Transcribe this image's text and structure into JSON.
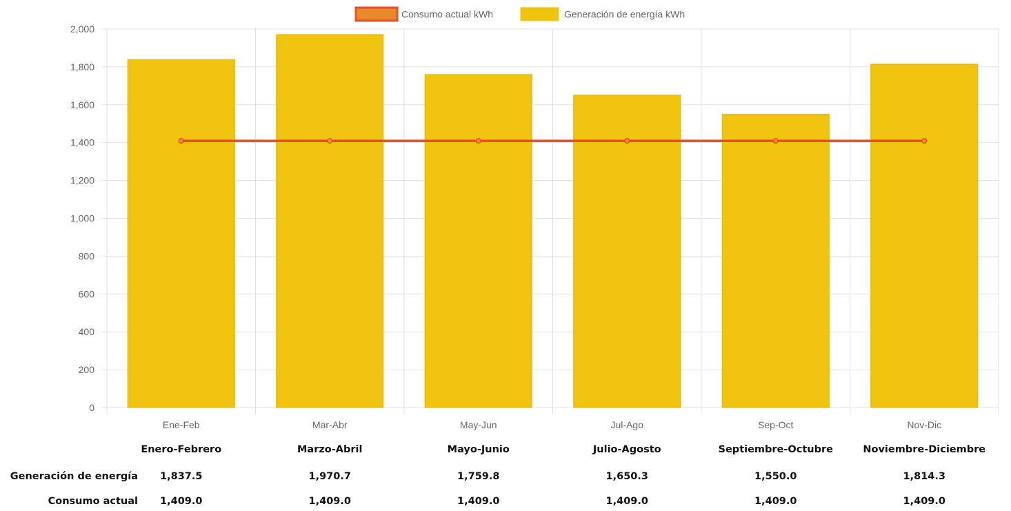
{
  "chart_data": {
    "type": "bar",
    "categories": [
      "Ene-Feb",
      "Mar-Abr",
      "May-Jun",
      "Jul-Ago",
      "Sep-Oct",
      "Nov-Dic"
    ],
    "series": [
      {
        "name": "Consumo actual kWh",
        "type": "line",
        "values": [
          1409.0,
          1409.0,
          1409.0,
          1409.0,
          1409.0,
          1409.0
        ],
        "color": "#e8502a",
        "marker_color": "#ef8a2a",
        "legend_fill": "#e8892a"
      },
      {
        "name": "Generación de energía kWh",
        "type": "bar",
        "values": [
          1837.5,
          1970.7,
          1759.8,
          1650.3,
          1550.0,
          1814.3
        ],
        "color": "#f0c30f"
      }
    ],
    "ylim": [
      0,
      2000
    ],
    "yticks": [
      0,
      200,
      400,
      600,
      800,
      1000,
      1200,
      1400,
      1600,
      1800,
      2000
    ],
    "ytick_labels": [
      "0",
      "200",
      "400",
      "600",
      "800",
      "1,000",
      "1,200",
      "1,400",
      "1,600",
      "1,800",
      "2,000"
    ],
    "grid": true,
    "legend_position": "top-center",
    "xlabel": "",
    "ylabel": ""
  },
  "table": {
    "columns": [
      "Enero-Febrero",
      "Marzo-Abril",
      "Mayo-Junio",
      "Julio-Agosto",
      "Septiembre-Octubre",
      "Noviembre-Diciembre"
    ],
    "rows": [
      {
        "label": "Generación de energía",
        "values": [
          "1,837.5",
          "1,970.7",
          "1,759.8",
          "1,650.3",
          "1,550.0",
          "1,814.3"
        ]
      },
      {
        "label": "Consumo actual",
        "values": [
          "1,409.0",
          "1,409.0",
          "1,409.0",
          "1,409.0",
          "1,409.0",
          "1,409.0"
        ]
      }
    ]
  }
}
